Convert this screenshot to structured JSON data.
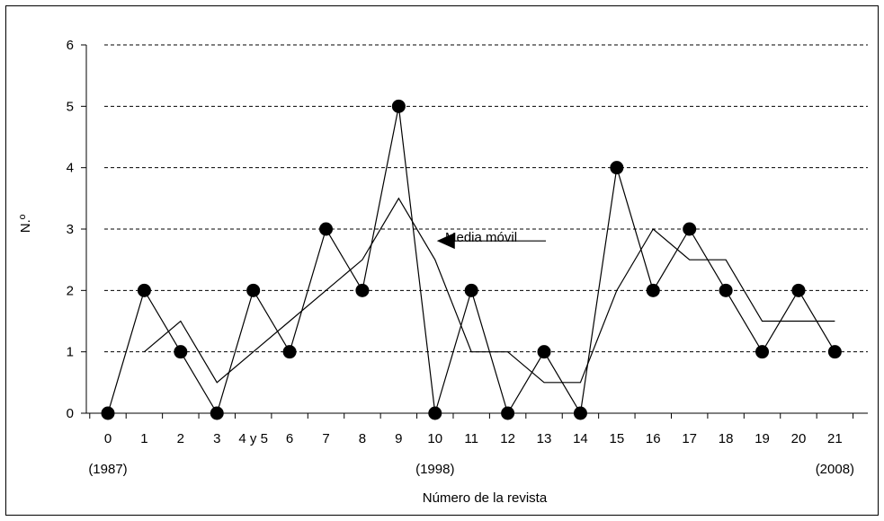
{
  "chart_data": {
    "type": "line",
    "xlabel": "Número de la revista",
    "ylabel": "N.º",
    "ylim": [
      0,
      6
    ],
    "y_ticks": [
      "0",
      "1",
      "2",
      "3",
      "4",
      "5",
      "6"
    ],
    "categories": [
      "0",
      "1",
      "2",
      "3",
      "4 y 5",
      "6",
      "7",
      "8",
      "9",
      "10",
      "11",
      "12",
      "13",
      "14",
      "15",
      "16",
      "17",
      "18",
      "19",
      "20",
      "21"
    ],
    "year_labels": [
      {
        "category": "0",
        "text": "(1987)"
      },
      {
        "category": "10",
        "text": "(1998)"
      },
      {
        "category": "21",
        "text": "(2008)"
      }
    ],
    "grid": "horizontal-dashed",
    "series": [
      {
        "marker": "filled-circle",
        "values": [
          0,
          2,
          1,
          0,
          2,
          1,
          3,
          2,
          5,
          0,
          2,
          0,
          1,
          0,
          4,
          2,
          3,
          2,
          1,
          2,
          1
        ]
      },
      {
        "name": "Media móvil",
        "marker": "none",
        "values": [
          null,
          1,
          1.5,
          0.5,
          1,
          1.5,
          2,
          2.5,
          3.5,
          2.5,
          1,
          1,
          0.5,
          0.5,
          2,
          3,
          2.5,
          2.5,
          1.5,
          1.5,
          1.5
        ]
      }
    ],
    "annotation": {
      "text": "Media móvil",
      "arrow": "left",
      "points_to_category": "10",
      "points_to_value": 2.5
    }
  }
}
